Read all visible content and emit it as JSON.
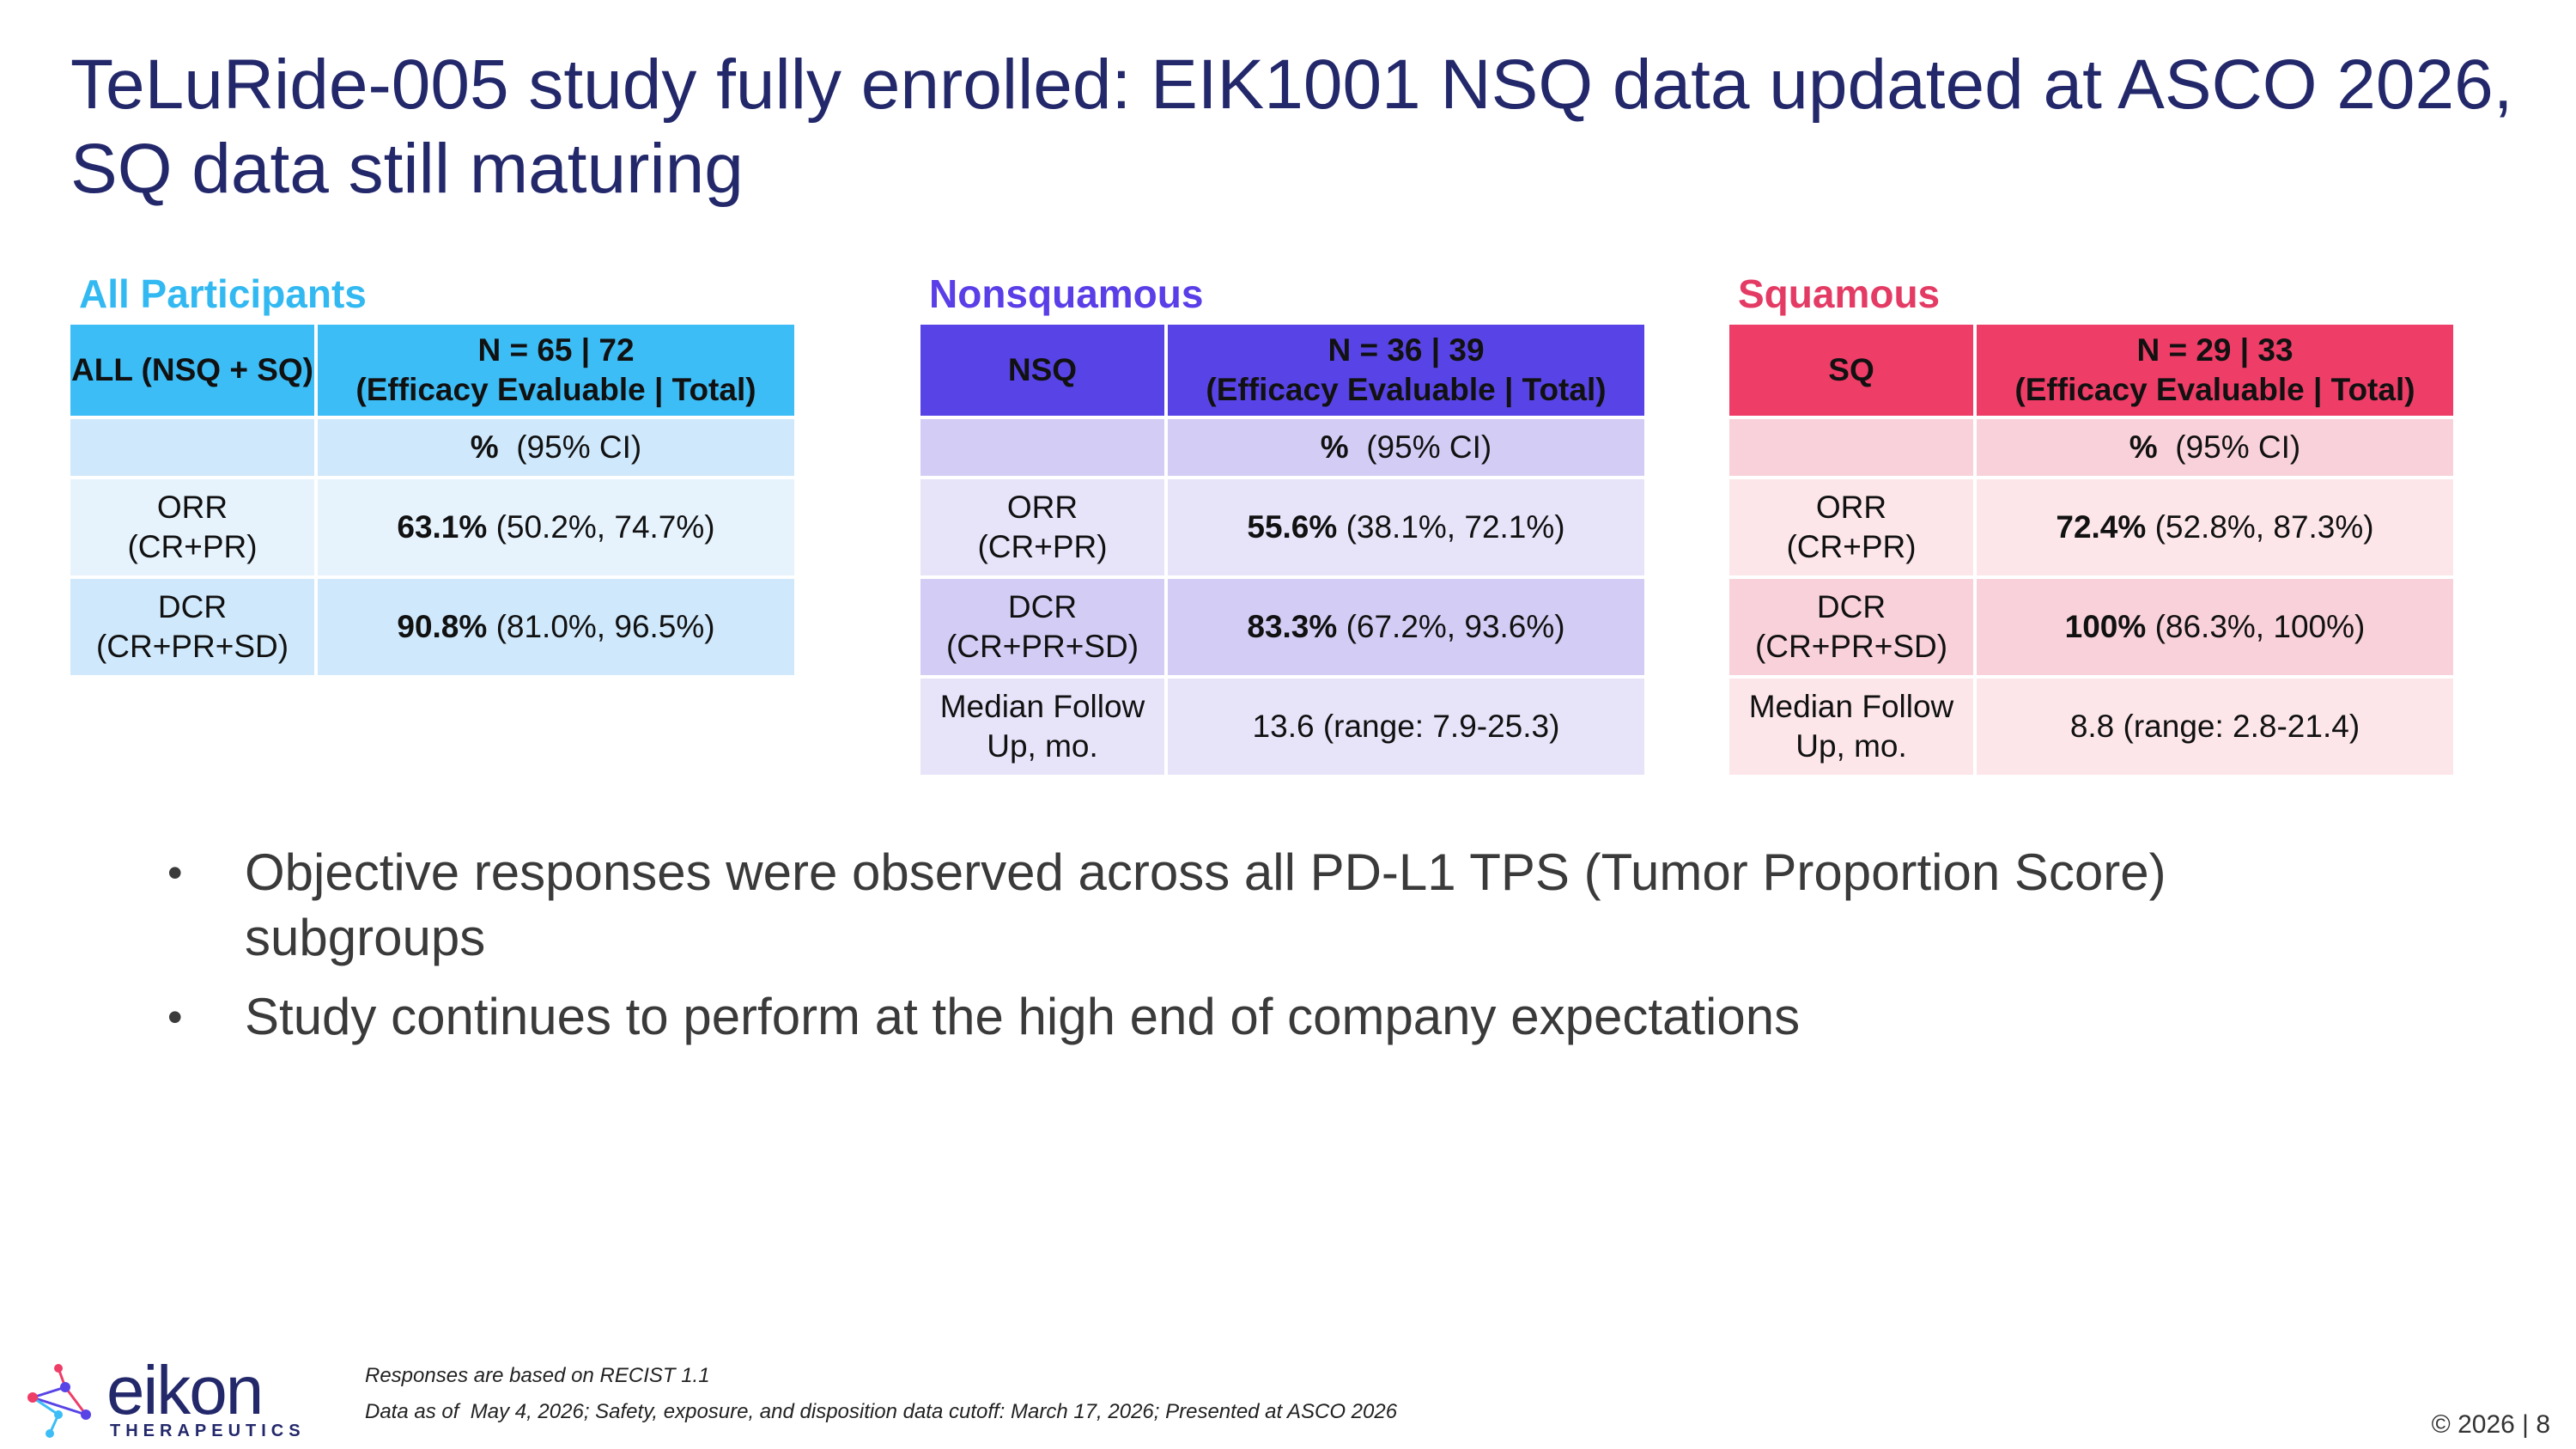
{
  "title": "TeLuRide-005 study fully enrolled: EIK1001 NSQ data updated at ASCO 2026, SQ data still maturing",
  "panels": {
    "all": {
      "heading": "All Participants",
      "col1_header": "ALL (NSQ + SQ)",
      "col2_header_line1": "N = 65 | 72",
      "col2_header_line2": "(Efficacy Evaluable | Total)",
      "subheader_pct": "%",
      "subheader_ci": "(95% CI)",
      "rows": [
        {
          "label_line1": "ORR",
          "label_line2": "(CR+PR)",
          "value_bold": "63.1%",
          "value_rest": "(50.2%, 74.7%)"
        },
        {
          "label_line1": "DCR",
          "label_line2": "(CR+PR+SD)",
          "value_bold": "90.8%",
          "value_rest": "(81.0%, 96.5%)"
        }
      ]
    },
    "nsq": {
      "heading": "Nonsquamous",
      "col1_header": "NSQ",
      "col2_header_line1": "N = 36 | 39",
      "col2_header_line2": "(Efficacy Evaluable | Total)",
      "subheader_pct": "%",
      "subheader_ci": "(95% CI)",
      "rows": [
        {
          "label_line1": "ORR",
          "label_line2": "(CR+PR)",
          "value_bold": "55.6%",
          "value_rest": "(38.1%, 72.1%)"
        },
        {
          "label_line1": "DCR",
          "label_line2": "(CR+PR+SD)",
          "value_bold": "83.3%",
          "value_rest": "(67.2%, 93.6%)"
        },
        {
          "label_line1": "Median Follow",
          "label_line2": "Up, mo.",
          "value_bold": "",
          "value_rest": "13.6 (range: 7.9-25.3)"
        }
      ]
    },
    "sq": {
      "heading": "Squamous",
      "col1_header": "SQ",
      "col2_header_line1": "N = 29 | 33",
      "col2_header_line2": "(Efficacy Evaluable | Total)",
      "subheader_pct": "%",
      "subheader_ci": "(95% CI)",
      "rows": [
        {
          "label_line1": "ORR",
          "label_line2": "(CR+PR)",
          "value_bold": "72.4%",
          "value_rest": "(52.8%, 87.3%)"
        },
        {
          "label_line1": "DCR",
          "label_line2": "(CR+PR+SD)",
          "value_bold": "100%",
          "value_rest": "(86.3%, 100%)"
        },
        {
          "label_line1": "Median Follow",
          "label_line2": "Up, mo.",
          "value_bold": "",
          "value_rest": "8.8 (range: 2.8-21.4)"
        }
      ]
    }
  },
  "bullets": [
    "Objective responses were observed across all PD-L1 TPS (Tumor Proportion Score) subgroups",
    "Study continues to perform at the high end of company expectations"
  ],
  "bullet_glyph": "•",
  "footnotes": [
    "Responses are based on RECIST 1.1",
    "Data as of  May 4, 2026; Safety, exposure, and disposition data cutoff: March 17, 2026; Presented at ASCO 2026"
  ],
  "logo": {
    "word": "eikon",
    "subtitle": "THERAPEUTICS",
    "icon": "molecule-icon"
  },
  "page_number": "© 2026 | 8",
  "colors": {
    "title": "#23286b",
    "all_accent": "#3dbdf6",
    "nsq_accent": "#5844e6",
    "sq_accent": "#ee3d67"
  }
}
